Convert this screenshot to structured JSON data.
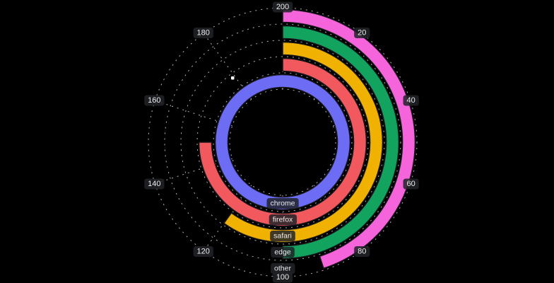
{
  "background_color": "#000000",
  "chart_data": {
    "type": "radial-bar",
    "categories": [
      "chrome",
      "firefox",
      "safari",
      "edge",
      "other"
    ],
    "values": [
      200,
      150,
      120,
      100,
      90
    ],
    "series": [
      {
        "name": "chrome",
        "value": 200,
        "color": "#6c6cf5"
      },
      {
        "name": "firefox",
        "value": 150,
        "color": "#f2595f"
      },
      {
        "name": "safari",
        "value": 120,
        "color": "#f0b100"
      },
      {
        "name": "edge",
        "value": 100,
        "color": "#12a35f"
      },
      {
        "name": "other",
        "value": 90,
        "color": "#f564da"
      }
    ],
    "angle_axis": {
      "min": 0,
      "max": 200,
      "tick_interval": 20,
      "ticks": [
        20,
        40,
        60,
        80,
        100,
        120,
        140,
        160,
        180,
        200
      ],
      "tick_labels": [
        "20",
        "40",
        "60",
        "80",
        "100",
        "120",
        "140",
        "160",
        "180",
        "200"
      ],
      "start": "top",
      "direction": "clockwise"
    },
    "radius_axis": {
      "type": "category",
      "labels": [
        "chrome",
        "firefox",
        "safari",
        "edge",
        "other"
      ],
      "label_position": "bottom"
    },
    "grid": {
      "shown": true,
      "style": "dashed",
      "color": "#c7ccd3",
      "circles": 6,
      "spokes": 10
    },
    "legend_position": "none",
    "title": ""
  },
  "label_style": {
    "text_color": "#ececec",
    "pill_color": "rgba(33,35,40,0.85)",
    "bar_border_color": "#15151a"
  }
}
